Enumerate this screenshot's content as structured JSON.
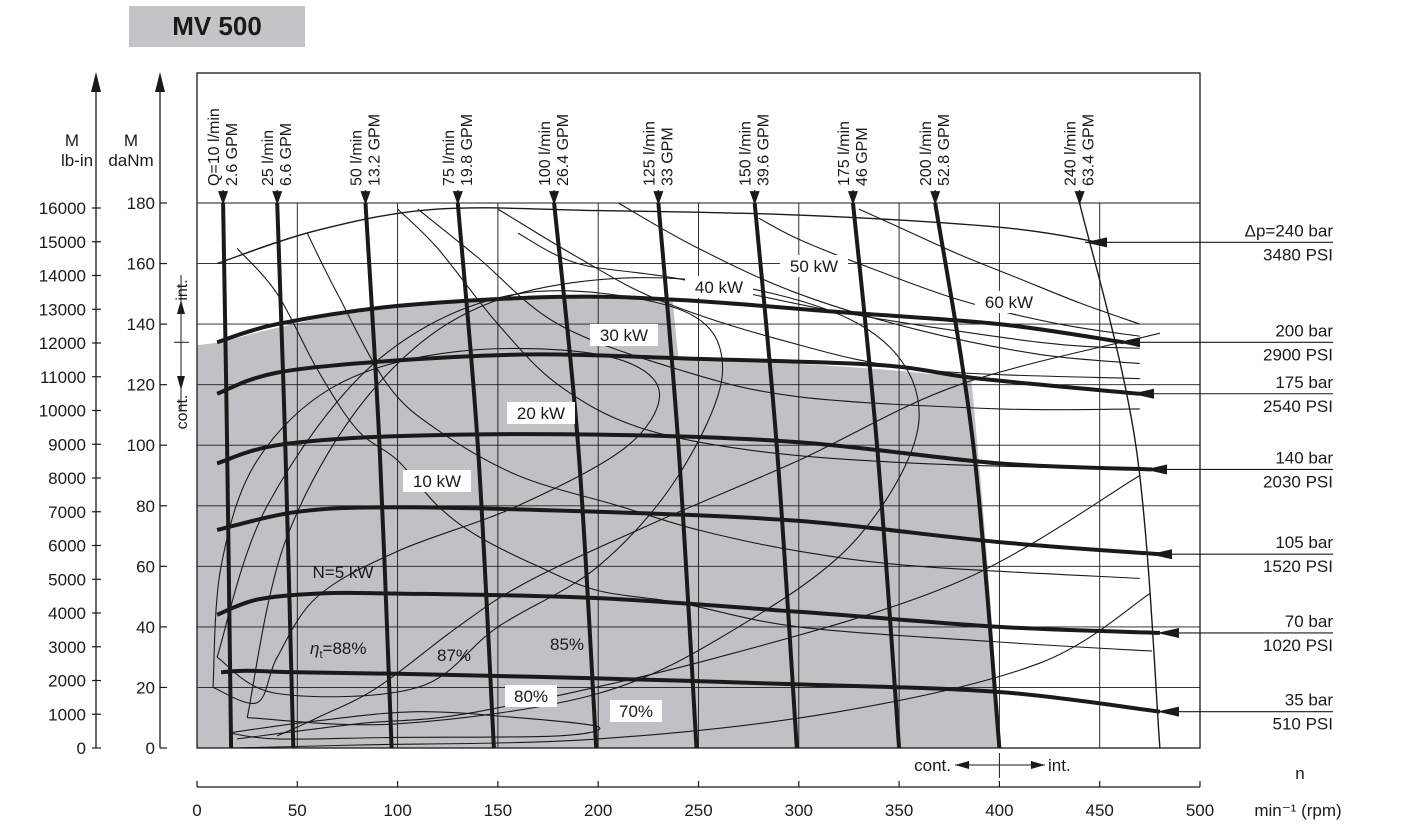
{
  "title": "MV 500",
  "chart_data": {
    "type": "line",
    "title": "MV 500",
    "x_axis": {
      "range": [
        0,
        500
      ],
      "ticks": [
        0,
        50,
        100,
        150,
        200,
        250,
        300,
        350,
        400,
        450,
        500
      ],
      "label_top": "n",
      "label_unit": "min⁻¹ (rpm)"
    },
    "y_axis_dNm": {
      "range": [
        0,
        180
      ],
      "ticks": [
        0,
        20,
        40,
        60,
        80,
        100,
        120,
        140,
        160,
        180
      ],
      "label_top": "M",
      "label_unit": "daNm"
    },
    "y_axis_lbin": {
      "range": [
        0,
        16000
      ],
      "ticks": [
        0,
        1000,
        2000,
        3000,
        4000,
        5000,
        6000,
        7000,
        8000,
        9000,
        10000,
        11000,
        12000,
        13000,
        14000,
        15000,
        16000
      ],
      "label_top": "M",
      "label_unit": "lb-in"
    },
    "cont_int_torque": {
      "cont_label": "cont.",
      "int_label": "int."
    },
    "cont_int_speed": {
      "cont_label": "cont.",
      "int_label": "int."
    },
    "pressure_curves": [
      {
        "bar_label": "35 bar",
        "psi_label": "510 PSI",
        "points": [
          [
            12,
            25
          ],
          [
            25,
            25.5
          ],
          [
            50,
            25
          ],
          [
            100,
            24.5
          ],
          [
            200,
            23
          ],
          [
            300,
            21
          ],
          [
            400,
            18.5
          ],
          [
            480,
            12
          ]
        ]
      },
      {
        "bar_label": "70 bar",
        "psi_label": "1020 PSI",
        "points": [
          [
            10,
            44
          ],
          [
            30,
            49
          ],
          [
            60,
            51
          ],
          [
            100,
            51
          ],
          [
            200,
            49.5
          ],
          [
            300,
            45
          ],
          [
            400,
            40
          ],
          [
            480,
            38
          ]
        ]
      },
      {
        "bar_label": "105 bar",
        "psi_label": "1520 PSI",
        "points": [
          [
            10,
            72
          ],
          [
            50,
            78
          ],
          [
            100,
            79.5
          ],
          [
            200,
            78
          ],
          [
            300,
            75
          ],
          [
            400,
            68
          ],
          [
            480,
            64
          ]
        ]
      },
      {
        "bar_label": "140 bar",
        "psi_label": "2030 PSI",
        "points": [
          [
            10,
            94
          ],
          [
            40,
            100
          ],
          [
            100,
            103
          ],
          [
            200,
            103.5
          ],
          [
            300,
            101
          ],
          [
            400,
            94
          ],
          [
            476,
            92
          ]
        ]
      },
      {
        "bar_label": "175 bar",
        "psi_label": "2540 PSI",
        "points": [
          [
            10,
            117
          ],
          [
            40,
            124
          ],
          [
            100,
            128
          ],
          [
            170,
            130
          ],
          [
            250,
            128.5
          ],
          [
            340,
            126.5
          ],
          [
            390,
            122
          ],
          [
            470,
            117
          ]
        ]
      },
      {
        "bar_label": "200 bar",
        "psi_label": "2900 PSI",
        "points": [
          [
            10,
            134
          ],
          [
            40,
            140
          ],
          [
            100,
            146
          ],
          [
            180,
            149
          ],
          [
            240,
            148
          ],
          [
            320,
            144
          ],
          [
            400,
            140
          ],
          [
            462,
            134
          ]
        ]
      },
      {
        "bar_label": "Δp=240 bar",
        "psi_label": "3480 PSI",
        "points": [
          [
            10,
            160
          ],
          [
            60,
            171
          ],
          [
            120,
            178
          ],
          [
            200,
            177.5
          ],
          [
            300,
            176
          ],
          [
            400,
            172
          ],
          [
            450,
            167
          ]
        ]
      }
    ],
    "flow_lines": [
      {
        "lpm": "Q=10 l/min",
        "gpm": "2.6 GPM",
        "points": [
          [
            13,
            180
          ],
          [
            15,
            100
          ],
          [
            17,
            0
          ]
        ]
      },
      {
        "lpm": "25 l/min",
        "gpm": "6.6 GPM",
        "points": [
          [
            40,
            180
          ],
          [
            44,
            100
          ],
          [
            48,
            0
          ]
        ]
      },
      {
        "lpm": "50 l/min",
        "gpm": "13.2 GPM",
        "points": [
          [
            84,
            180
          ],
          [
            91,
            100
          ],
          [
            97,
            0
          ]
        ]
      },
      {
        "lpm": "75 l/min",
        "gpm": "19.8 GPM",
        "points": [
          [
            130,
            180
          ],
          [
            140,
            100
          ],
          [
            148,
            0
          ]
        ]
      },
      {
        "lpm": "100 l/min",
        "gpm": "26.4 GPM",
        "points": [
          [
            178,
            180
          ],
          [
            190,
            100
          ],
          [
            199,
            0
          ]
        ]
      },
      {
        "lpm": "125 l/min",
        "gpm": "33 GPM",
        "points": [
          [
            230,
            180
          ],
          [
            240,
            100
          ],
          [
            249,
            0
          ]
        ]
      },
      {
        "lpm": "150 l/min",
        "gpm": "39.6 GPM",
        "points": [
          [
            278,
            180
          ],
          [
            289,
            100
          ],
          [
            299,
            0
          ]
        ]
      },
      {
        "lpm": "175 l/min",
        "gpm": "46 GPM",
        "points": [
          [
            327,
            180
          ],
          [
            339,
            100
          ],
          [
            350,
            0
          ]
        ]
      },
      {
        "lpm": "200 l/min",
        "gpm": "52.8 GPM",
        "points": [
          [
            368,
            180
          ],
          [
            387,
            100
          ],
          [
            400,
            0
          ]
        ]
      },
      {
        "lpm": "240 l/min",
        "gpm": "63.4 GPM",
        "points": [
          [
            440,
            180
          ],
          [
            468,
            100
          ],
          [
            480,
            0
          ]
        ]
      }
    ],
    "power_labels": [
      "N=5 kW",
      "10 kW",
      "20 kW",
      "30 kW",
      "40 kW",
      "50 kW",
      "60 kW"
    ],
    "efficiency_labels": [
      "ηt=88%",
      "87%",
      "85%",
      "80%",
      "70%"
    ],
    "efficiency_symbol": "η",
    "efficiency_subscript": "t",
    "efficiency_value": "=88%"
  }
}
